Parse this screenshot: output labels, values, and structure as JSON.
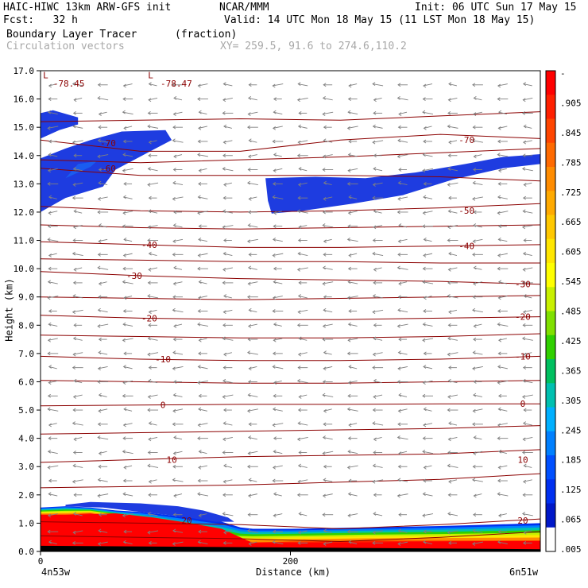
{
  "header": {
    "line1_left": "HAIC-HIWC 13km ARW-GFS init",
    "line1_center": "NCAR/MMM",
    "line1_right": "Init: 06 UTC Sun 17 May 15",
    "line2_left": "Fcst:   32 h",
    "line2_right": "Valid: 14 UTC Mon 18 May 15 (11 LST Mon 18 May 15)",
    "line3_left": "Boundary Layer Tracer",
    "line3_units": "(fraction)",
    "line4_left": "Circulation vectors",
    "line4_xy": "XY= 259.5, 91.6 to 274.6,110.2"
  },
  "chart_data": {
    "type": "cross-section",
    "xlabel": "Distance (km)",
    "ylabel": "Height (km)",
    "xlim": [
      0,
      400
    ],
    "ylim": [
      0,
      17
    ],
    "x_ticks": [
      {
        "value": 0,
        "label": "0"
      },
      {
        "value": 200,
        "label": "200"
      }
    ],
    "x_end_labels": {
      "left": "4n53w",
      "right": "6n51w"
    },
    "y_ticks": [
      "0.0",
      "1.0",
      "2.0",
      "3.0",
      "4.0",
      "5.0",
      "6.0",
      "7.0",
      "8.0",
      "9.0",
      "10.0",
      "11.0",
      "12.0",
      "13.0",
      "14.0",
      "15.0",
      "16.0",
      "17.0"
    ],
    "extreme_labels": [
      {
        "text": "L",
        "x": 2,
        "y": 16.85
      },
      {
        "text": "-78.45",
        "x": 10,
        "y": 16.55
      },
      {
        "text": "L",
        "x": 86,
        "y": 16.85
      },
      {
        "text": "-78.47",
        "x": 96,
        "y": 16.55
      }
    ],
    "temperature_contours": [
      {
        "value": -70,
        "label": "-70",
        "levels": [
          14.55,
          14.15,
          14.15,
          14.55,
          14.75,
          14.6
        ],
        "label_at": [
          [
            54,
            14.45
          ],
          [
            341,
            14.55
          ]
        ]
      },
      {
        "value": -60,
        "label": "-60",
        "levels": [
          13.55,
          13.3,
          13.3,
          13.3,
          13.25,
          13.1
        ],
        "label_at": [
          [
            54,
            13.55
          ]
        ]
      },
      {
        "value": -50,
        "label": "-50",
        "levels": [
          12.2,
          12.05,
          12.0,
          12.05,
          12.15,
          12.3
        ],
        "label_at": [
          [
            341,
            12.05
          ]
        ]
      },
      {
        "value": -40,
        "label": "-40",
        "levels": [
          10.95,
          10.85,
          10.75,
          10.75,
          10.8,
          10.85
        ],
        "label_at": [
          [
            87,
            10.85
          ],
          [
            341,
            10.8
          ]
        ]
      },
      {
        "value": -30,
        "label": "-30",
        "levels": [
          9.9,
          9.75,
          9.65,
          9.6,
          9.55,
          9.45
        ],
        "label_at": [
          [
            75,
            9.75
          ],
          [
            386,
            9.45
          ]
        ]
      },
      {
        "value": -20,
        "label": "-20",
        "levels": [
          8.35,
          8.25,
          8.2,
          8.2,
          8.25,
          8.3
        ],
        "label_at": [
          [
            87,
            8.25
          ],
          [
            386,
            8.3
          ]
        ]
      },
      {
        "value": -10,
        "label": "-10",
        "levels": [
          6.9,
          6.8,
          6.75,
          6.75,
          6.8,
          6.9
        ],
        "label_at": [
          [
            98,
            6.8
          ],
          [
            386,
            6.9
          ]
        ]
      },
      {
        "value": 0,
        "label": "0",
        "levels": [
          5.15,
          5.18,
          5.2,
          5.2,
          5.22,
          5.22
        ],
        "label_at": [
          [
            98,
            5.18
          ],
          [
            386,
            5.22
          ]
        ]
      },
      {
        "value": 10,
        "label": "10",
        "levels": [
          3.15,
          3.25,
          3.35,
          3.4,
          3.45,
          3.6
        ],
        "label_at": [
          [
            105,
            3.25
          ],
          [
            386,
            3.25
          ]
        ]
      },
      {
        "value": 20,
        "label": "20",
        "levels": [
          1.05,
          1.0,
          0.95,
          0.8,
          0.95,
          1.15
        ],
        "label_at": [
          [
            117,
            1.1
          ],
          [
            386,
            1.1
          ]
        ]
      }
    ],
    "extra_temperature_lines": [
      [
        15.2,
        15.25,
        15.3,
        15.25,
        15.4,
        15.55
      ],
      [
        13.85,
        13.75,
        13.85,
        13.95,
        14.1,
        14.25
      ],
      [
        11.55,
        11.45,
        11.4,
        11.45,
        11.5,
        11.55
      ],
      [
        10.35,
        10.3,
        10.25,
        10.25,
        10.2,
        10.2
      ],
      [
        9.0,
        8.95,
        8.9,
        8.95,
        9.0,
        9.05
      ],
      [
        7.65,
        7.6,
        7.55,
        7.55,
        7.6,
        7.7
      ],
      [
        6.05,
        6.0,
        5.95,
        5.95,
        6.0,
        6.05
      ],
      [
        4.15,
        4.2,
        4.25,
        4.3,
        4.35,
        4.45
      ],
      [
        2.25,
        2.3,
        2.35,
        2.45,
        2.55,
        2.75
      ],
      [
        0.55,
        0.5,
        0.45,
        0.35,
        0.5,
        0.7
      ]
    ],
    "contour_x": [
      0,
      80,
      160,
      240,
      320,
      400
    ],
    "tracer_regions": [
      {
        "name": "upper-left-blob",
        "value": 0.0,
        "fill": "#1e3ce0",
        "points": [
          [
            0,
            14.6
          ],
          [
            15,
            14.9
          ],
          [
            30,
            15.1
          ],
          [
            30,
            15.35
          ],
          [
            10,
            15.6
          ],
          [
            0,
            15.5
          ]
        ]
      },
      {
        "name": "left-band",
        "value": 0.0,
        "fill": "#1e3ce0",
        "points": [
          [
            0,
            12.0
          ],
          [
            20,
            12.5
          ],
          [
            50,
            12.9
          ],
          [
            60,
            13.5
          ],
          [
            90,
            14.2
          ],
          [
            105,
            14.55
          ],
          [
            100,
            14.9
          ],
          [
            65,
            14.85
          ],
          [
            40,
            14.55
          ],
          [
            20,
            14.25
          ],
          [
            0,
            13.9
          ]
        ]
      },
      {
        "name": "left-band-core",
        "value": 0.02,
        "fill": "#1a5cf0",
        "points": [
          [
            20,
            13.2
          ],
          [
            40,
            13.6
          ],
          [
            45,
            13.8
          ],
          [
            30,
            13.7
          ]
        ]
      },
      {
        "name": "right-band",
        "value": 0.0,
        "fill": "#1e3ce0",
        "points": [
          [
            180,
            13.2
          ],
          [
            220,
            13.25
          ],
          [
            260,
            13.2
          ],
          [
            300,
            13.4
          ],
          [
            340,
            13.7
          ],
          [
            370,
            13.95
          ],
          [
            400,
            14.05
          ],
          [
            400,
            13.7
          ],
          [
            370,
            13.55
          ],
          [
            330,
            13.15
          ],
          [
            290,
            12.6
          ],
          [
            250,
            12.3
          ],
          [
            210,
            12.05
          ],
          [
            185,
            11.95
          ],
          [
            182,
            12.4
          ]
        ]
      }
    ],
    "boundary_layer": {
      "surface_fill": "#ff0000",
      "top_km": [
        [
          0,
          1.55
        ],
        [
          20,
          1.6
        ],
        [
          40,
          1.55
        ],
        [
          60,
          1.45
        ],
        [
          80,
          1.4
        ],
        [
          100,
          1.3
        ],
        [
          120,
          1.2
        ],
        [
          145,
          1.05
        ],
        [
          160,
          0.85
        ],
        [
          170,
          0.8
        ],
        [
          200,
          0.8
        ],
        [
          260,
          0.85
        ],
        [
          320,
          0.9
        ],
        [
          360,
          0.95
        ],
        [
          400,
          1.0
        ]
      ],
      "red_top_km": [
        [
          0,
          1.3
        ],
        [
          30,
          1.3
        ],
        [
          60,
          1.35
        ],
        [
          90,
          1.2
        ],
        [
          120,
          1.0
        ],
        [
          145,
          0.8
        ],
        [
          160,
          0.5
        ],
        [
          170,
          0.3
        ],
        [
          200,
          0.3
        ],
        [
          260,
          0.32
        ],
        [
          320,
          0.35
        ],
        [
          400,
          0.38
        ]
      ],
      "upper_patch": [
        [
          20,
          1.65
        ],
        [
          40,
          1.75
        ],
        [
          80,
          1.7
        ],
        [
          110,
          1.6
        ],
        [
          130,
          1.45
        ],
        [
          150,
          1.2
        ],
        [
          155,
          1.05
        ],
        [
          140,
          1.05
        ],
        [
          110,
          1.25
        ],
        [
          80,
          1.4
        ],
        [
          50,
          1.55
        ],
        [
          20,
          1.6
        ]
      ]
    },
    "colorbar": {
      "labels": [
        "-",
        ".905",
        ".845",
        ".785",
        ".725",
        ".665",
        ".605",
        ".545",
        ".485",
        ".425",
        ".365",
        ".305",
        ".245",
        ".185",
        ".125",
        ".065",
        ".005"
      ],
      "colors": [
        "#ff0000",
        "#ff2000",
        "#ff4500",
        "#ff6a00",
        "#ff8c00",
        "#ffaa00",
        "#ffc800",
        "#ffe600",
        "#ffff00",
        "#c8f000",
        "#80e000",
        "#30d000",
        "#00c060",
        "#00c0b0",
        "#00b0ff",
        "#0080ff",
        "#0050ff",
        "#0030f0",
        "#0018c8",
        "#ffffff"
      ]
    },
    "vectors": {
      "upper_dir": "west",
      "lower_dir": "west",
      "columns_km": [
        10,
        30,
        50,
        70,
        90,
        110,
        130,
        150,
        170,
        190,
        210,
        230,
        250,
        270,
        290,
        310,
        330,
        350,
        370,
        390
      ],
      "rows_km": [
        0.3,
        0.7,
        1.3,
        2.0,
        2.5,
        3.0,
        3.5,
        4.0,
        4.5,
        5.0,
        5.5,
        6.0,
        6.5,
        7.0,
        7.5,
        8.0,
        8.5,
        9.0,
        9.5,
        10.0,
        10.5,
        11.0,
        11.5,
        12.0,
        12.5,
        13.0,
        13.5,
        14.0,
        14.5,
        15.0,
        15.5,
        16.0,
        16.5
      ]
    }
  }
}
